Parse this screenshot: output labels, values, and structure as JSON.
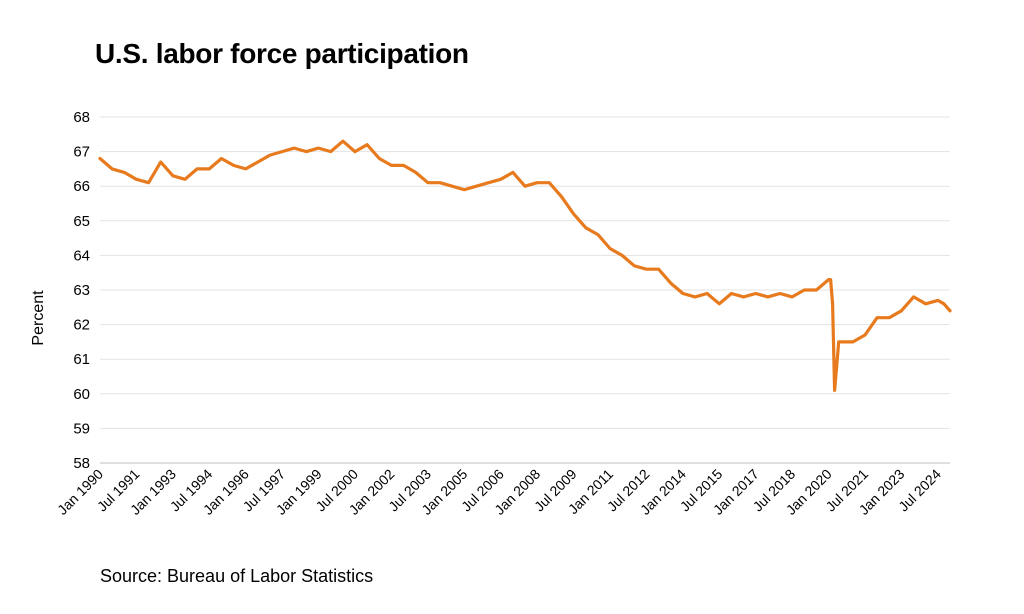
{
  "chart_data": {
    "type": "line",
    "title": "U.S. labor force participation",
    "ylabel": "Percent",
    "xlabel": "",
    "ylim": [
      58,
      68
    ],
    "yticks": [
      58,
      59,
      60,
      61,
      62,
      63,
      64,
      65,
      66,
      67,
      68
    ],
    "x_start": "Jan 1990",
    "x_end": "Jan 2025",
    "x_tick_labels": [
      "Jan 1990",
      "Jul 1991",
      "Jan 1993",
      "Jul 1994",
      "Jan 1996",
      "Jul 1997",
      "Jan 1999",
      "Jul 2000",
      "Jan 2002",
      "Jul 2003",
      "Jan 2005",
      "Jul 2006",
      "Jan 2008",
      "Jul 2009",
      "Jan 2011",
      "Jul 2012",
      "Jan 2014",
      "Jul 2015",
      "Jan 2017",
      "Jul 2018",
      "Jan 2020",
      "Jul 2021",
      "Jan 2023",
      "Jul 2024"
    ],
    "grid": true,
    "series_color": "#E87A1E",
    "source": "Source: Bureau of Labor Statistics",
    "series": [
      {
        "x": [
          "1990-01",
          "1990-07",
          "1991-01",
          "1991-07",
          "1992-01",
          "1992-07",
          "1993-01",
          "1993-07",
          "1994-01",
          "1994-07",
          "1995-01",
          "1995-07",
          "1996-01",
          "1996-07",
          "1997-01",
          "1997-07",
          "1998-01",
          "1998-07",
          "1999-01",
          "1999-07",
          "2000-01",
          "2000-07",
          "2001-01",
          "2001-07",
          "2002-01",
          "2002-07",
          "2003-01",
          "2003-07",
          "2004-01",
          "2004-07",
          "2005-01",
          "2005-07",
          "2006-01",
          "2006-07",
          "2007-01",
          "2007-07",
          "2008-01",
          "2008-07",
          "2009-01",
          "2009-07",
          "2010-01",
          "2010-07",
          "2011-01",
          "2011-07",
          "2012-01",
          "2012-07",
          "2013-01",
          "2013-07",
          "2014-01",
          "2014-07",
          "2015-01",
          "2015-07",
          "2016-01",
          "2016-07",
          "2017-01",
          "2017-07",
          "2018-01",
          "2018-07",
          "2019-01",
          "2019-07",
          "2020-01",
          "2020-02",
          "2020-03",
          "2020-04",
          "2020-05",
          "2020-06",
          "2020-07",
          "2021-01",
          "2021-07",
          "2022-01",
          "2022-07",
          "2023-01",
          "2023-07",
          "2024-01",
          "2024-07",
          "2024-10",
          "2025-01"
        ],
        "values": [
          66.8,
          66.5,
          66.4,
          66.2,
          66.1,
          66.7,
          66.3,
          66.2,
          66.5,
          66.5,
          66.8,
          66.6,
          66.5,
          66.7,
          66.9,
          67.0,
          67.1,
          67.0,
          67.1,
          67.0,
          67.3,
          67.0,
          67.2,
          66.8,
          66.6,
          66.6,
          66.4,
          66.1,
          66.1,
          66.0,
          65.9,
          66.0,
          66.1,
          66.2,
          66.4,
          66.0,
          66.1,
          66.1,
          65.7,
          65.2,
          64.8,
          64.6,
          64.2,
          64.0,
          63.7,
          63.6,
          63.6,
          63.2,
          62.9,
          62.8,
          62.9,
          62.6,
          62.9,
          62.8,
          62.9,
          62.8,
          62.9,
          62.8,
          63.0,
          63.0,
          63.3,
          63.3,
          62.6,
          60.1,
          60.8,
          61.5,
          61.5,
          61.5,
          61.7,
          62.2,
          62.2,
          62.4,
          62.8,
          62.6,
          62.7,
          62.6,
          62.4
        ]
      }
    ]
  }
}
